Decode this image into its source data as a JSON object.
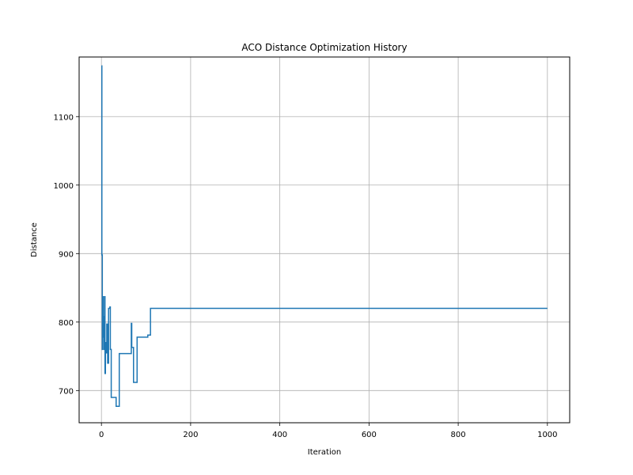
{
  "chart_data": {
    "type": "line",
    "title": "ACO Distance Optimization History",
    "xlabel": "Iteration",
    "ylabel": "Distance",
    "xlim": [
      -50,
      1050
    ],
    "ylim": [
      653,
      1187
    ],
    "xticks": [
      0,
      200,
      400,
      600,
      800,
      1000
    ],
    "yticks": [
      700,
      800,
      900,
      1000,
      1100
    ],
    "grid": true,
    "colors": {
      "line": "#1f77b4",
      "grid": "#b0b0b0",
      "axes": "#000000"
    },
    "series": [
      {
        "step": "post",
        "x": [
          0,
          1,
          2,
          3,
          4,
          5,
          6,
          7,
          8,
          9,
          10,
          12,
          14,
          16,
          18,
          19,
          20,
          22,
          24,
          26,
          28,
          33,
          35,
          40,
          45,
          50,
          55,
          60,
          65,
          67,
          68,
          72,
          75,
          80,
          85,
          90,
          95,
          100,
          104,
          107,
          110,
          150,
          1000
        ],
        "y": [
          1174,
          898,
          760,
          837,
          778,
          808,
          760,
          837,
          725,
          770,
          755,
          797,
          740,
          820,
          820,
          822,
          760,
          690,
          690,
          690,
          690,
          677,
          677,
          754,
          754,
          754,
          754,
          754,
          754,
          798,
          763,
          712,
          712,
          778,
          778,
          778,
          778,
          778,
          781,
          781,
          820,
          820,
          820
        ]
      }
    ]
  }
}
